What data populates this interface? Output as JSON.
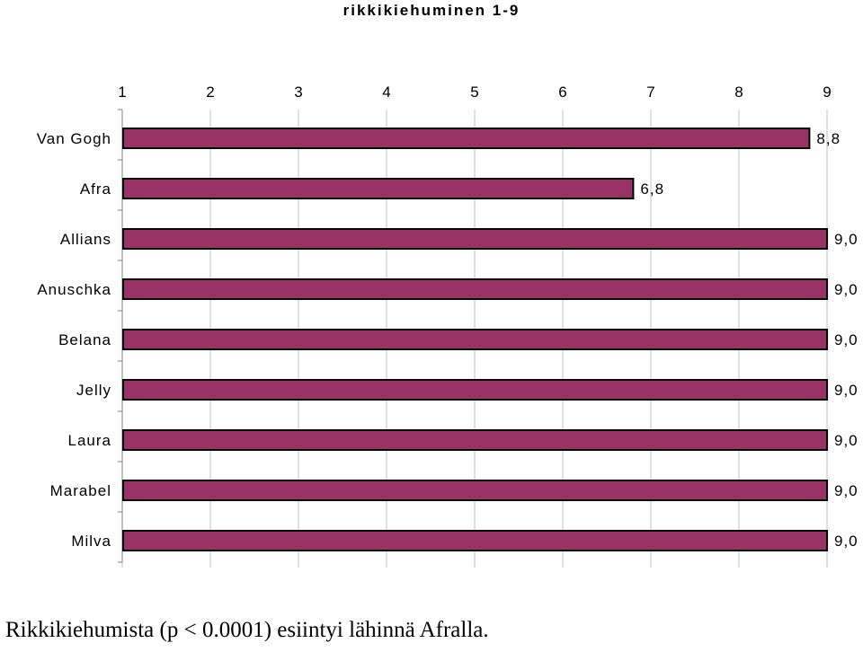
{
  "chart_data": {
    "type": "bar",
    "orientation": "horizontal",
    "title": "rikkikiehuminen 1-9",
    "categories": [
      "Van Gogh",
      "Afra",
      "Allians",
      "Anuschka",
      "Belana",
      "Jelly",
      "Laura",
      "Marabel",
      "Milva"
    ],
    "values": [
      8.8,
      6.8,
      9.0,
      9.0,
      9.0,
      9.0,
      9.0,
      9.0,
      9.0
    ],
    "data_labels": [
      "8,8",
      "6,8",
      "9,0",
      "9,0",
      "9,0",
      "9,0",
      "9,0",
      "9,0",
      "9,0"
    ],
    "xticks": [
      "1",
      "2",
      "3",
      "4",
      "5",
      "6",
      "7",
      "8",
      "9"
    ],
    "xlim": [
      1,
      9
    ],
    "xaxis_position": "top",
    "grid": true,
    "legend": false,
    "bar_color": "#993366",
    "xlabel": "",
    "ylabel": ""
  },
  "caption": "Rikkikiehumista (p < 0.0001) esiintyi lähinnä Afralla."
}
